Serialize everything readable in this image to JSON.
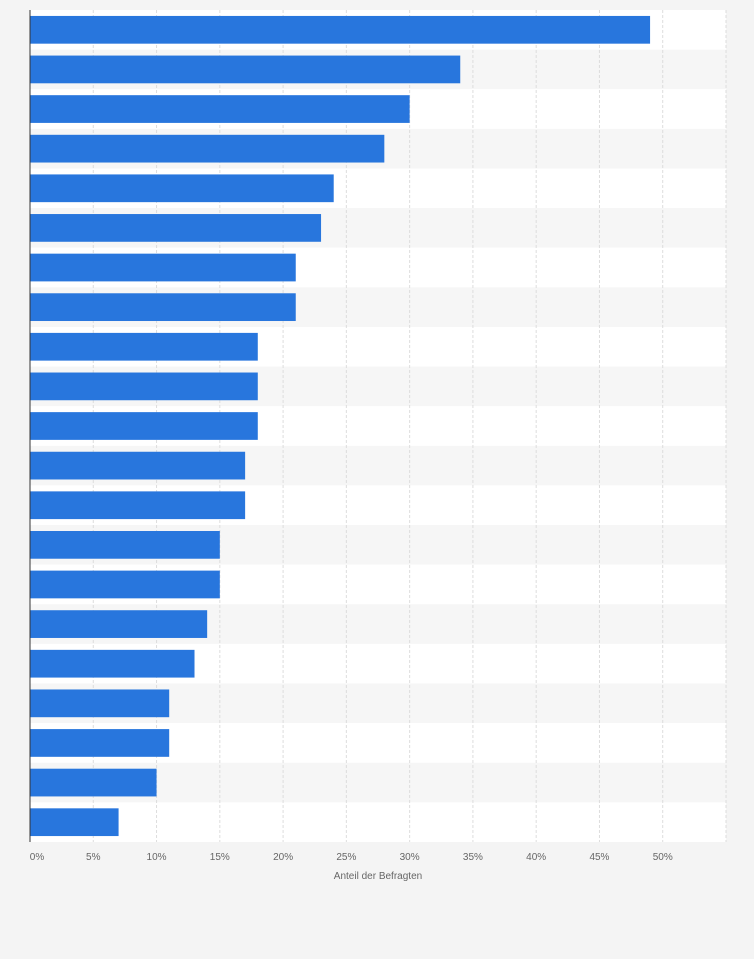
{
  "chart_data": {
    "type": "bar",
    "orientation": "horizontal",
    "xlabel": "Anteil der Befragten",
    "xlim": [
      0,
      55
    ],
    "x_ticks": [
      "0%",
      "5%",
      "10%",
      "15%",
      "20%",
      "25%",
      "30%",
      "35%",
      "40%",
      "45%",
      "50%"
    ],
    "values": [
      49,
      34,
      30,
      28,
      24,
      23,
      21,
      21,
      18,
      18,
      18,
      17,
      17,
      15,
      15,
      14,
      13,
      11,
      11,
      10,
      7
    ],
    "bar_color": "#2876dd",
    "grid": true,
    "legend": "none"
  }
}
